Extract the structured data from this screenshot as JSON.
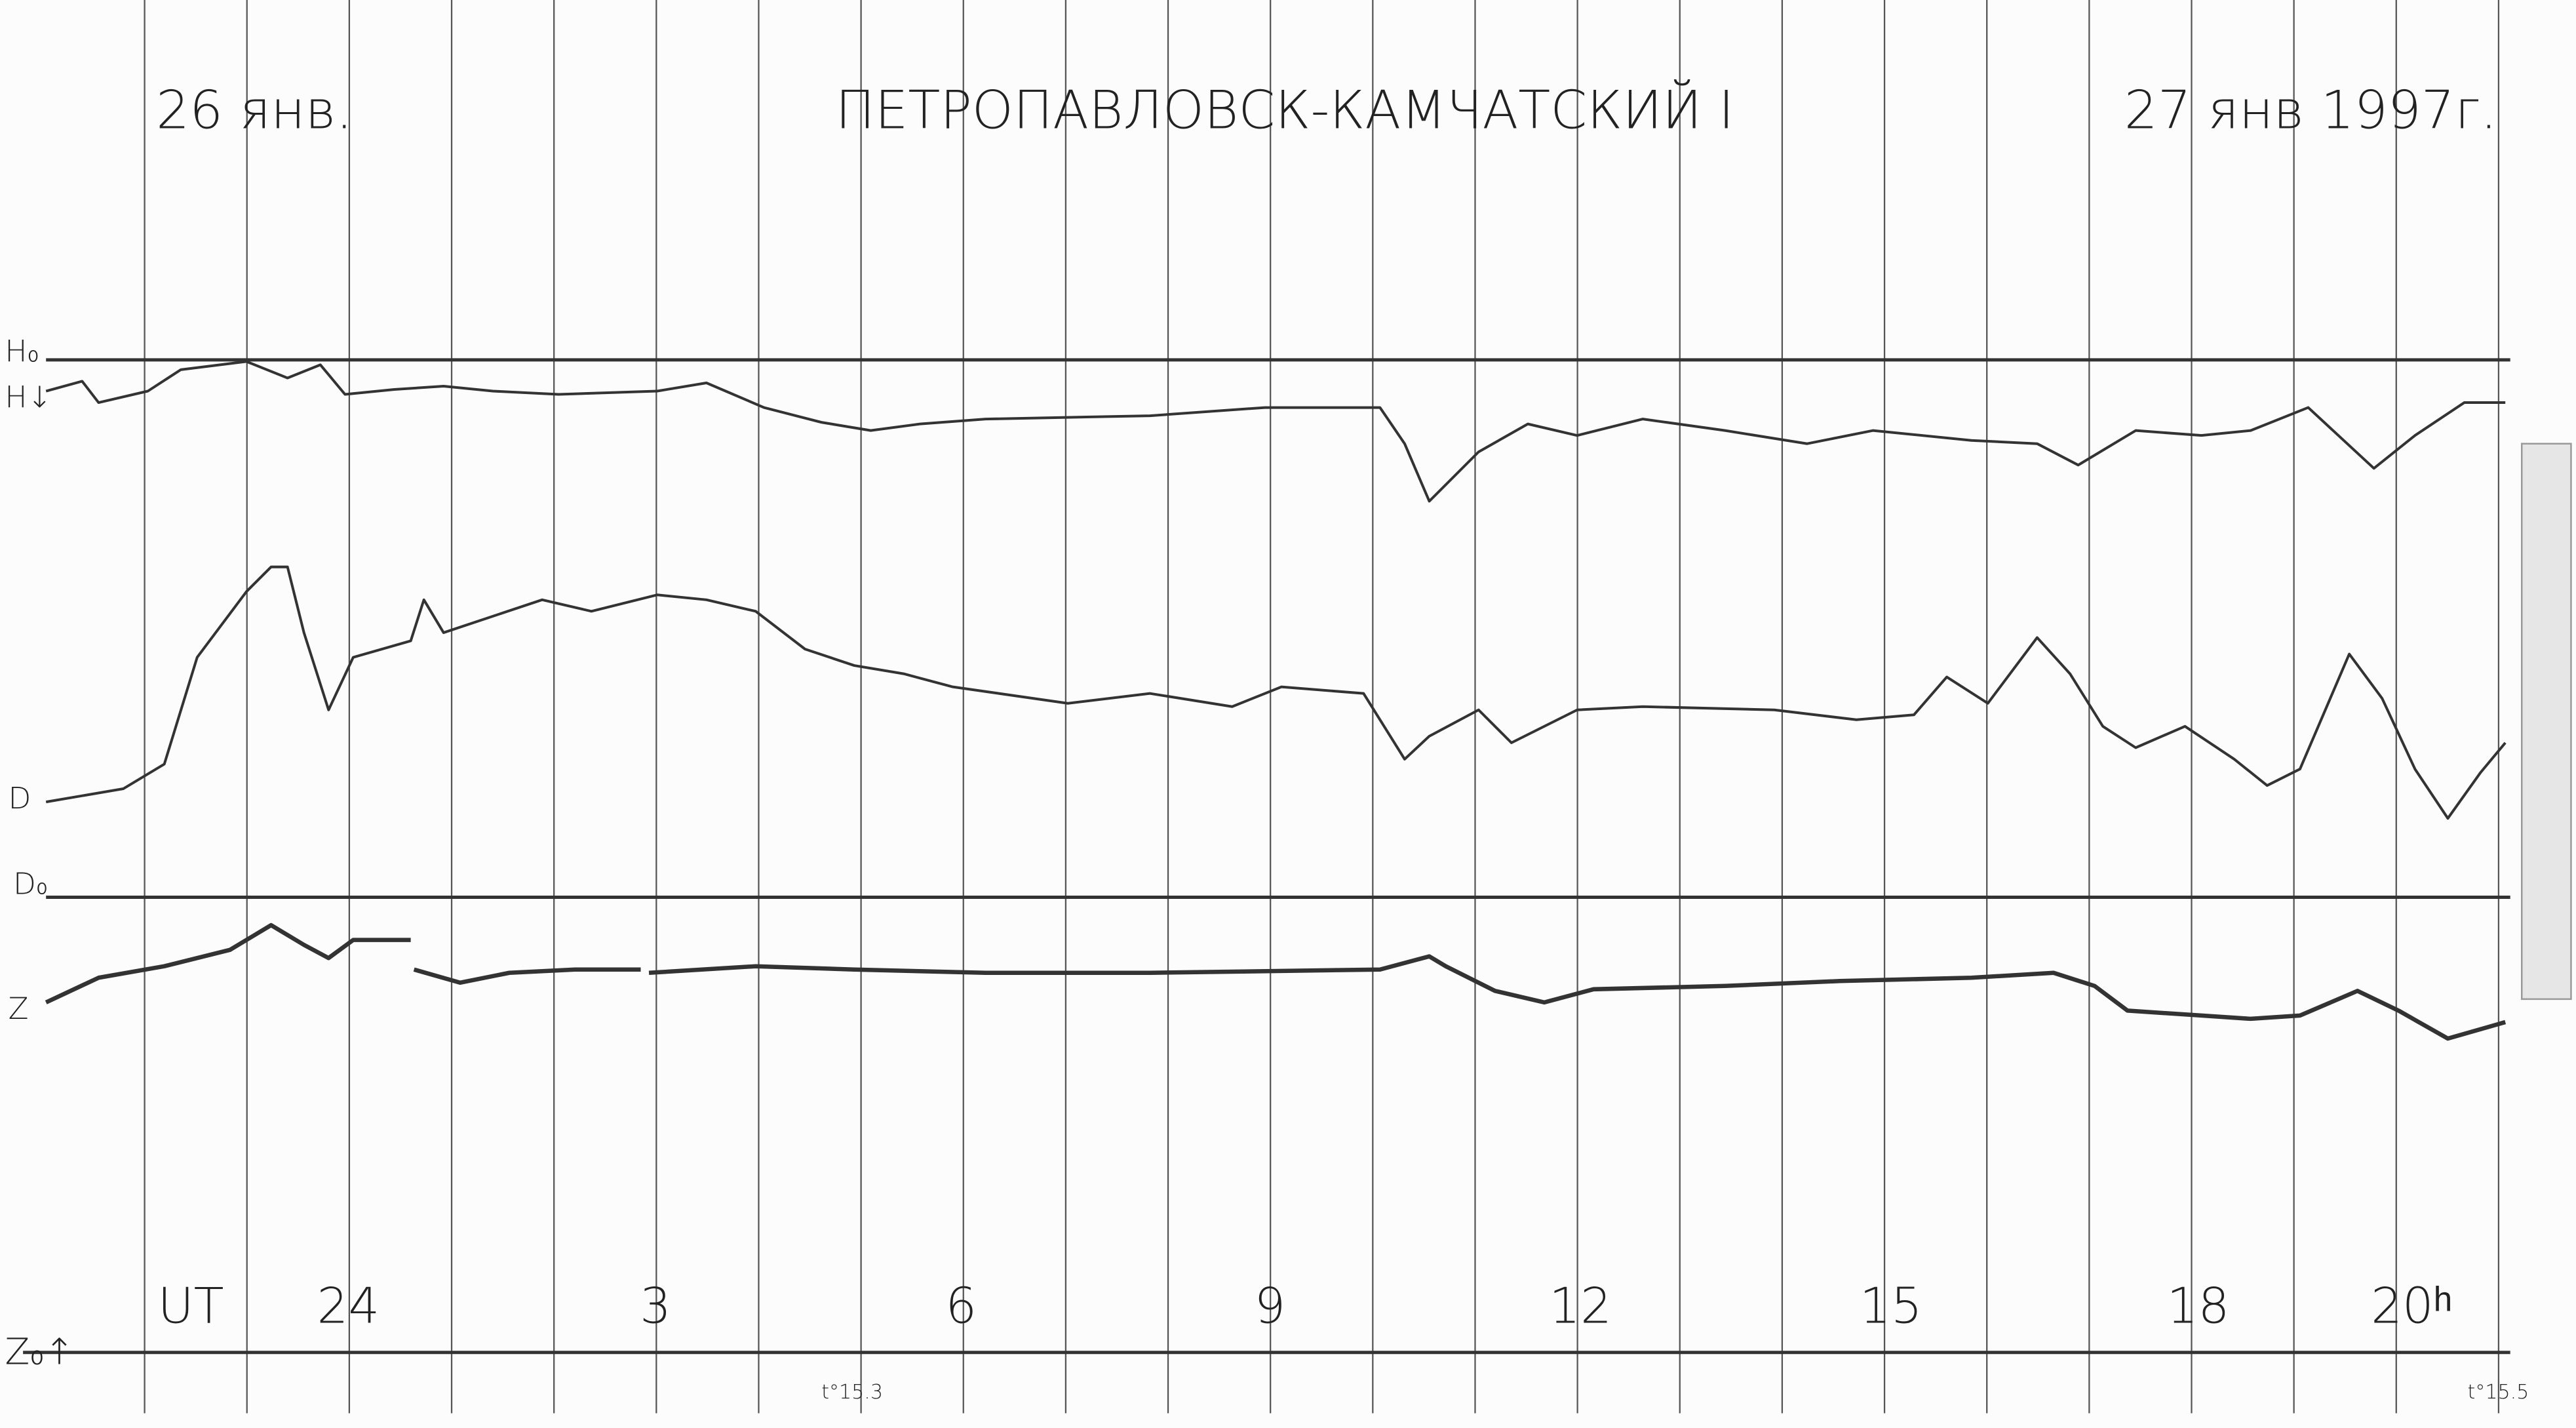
{
  "header": {
    "date_start": "26 янв.",
    "station": "ПЕТРОПАВЛОВСК-КАМЧАТСКИЙ I",
    "date_end": "27 янв 1997г."
  },
  "traces": [
    {
      "baseline": "H₀",
      "label": "H↓"
    },
    {
      "baseline": "D₀",
      "label": "D"
    },
    {
      "baseline": "Z₀↑",
      "label": "Z"
    }
  ],
  "time_axis": {
    "unit": "UT",
    "labels": [
      "24",
      "3",
      "6",
      "9",
      "12",
      "15",
      "18",
      "20ʰ"
    ]
  },
  "temperature": [
    "t°15.3",
    "t°15.5"
  ]
}
